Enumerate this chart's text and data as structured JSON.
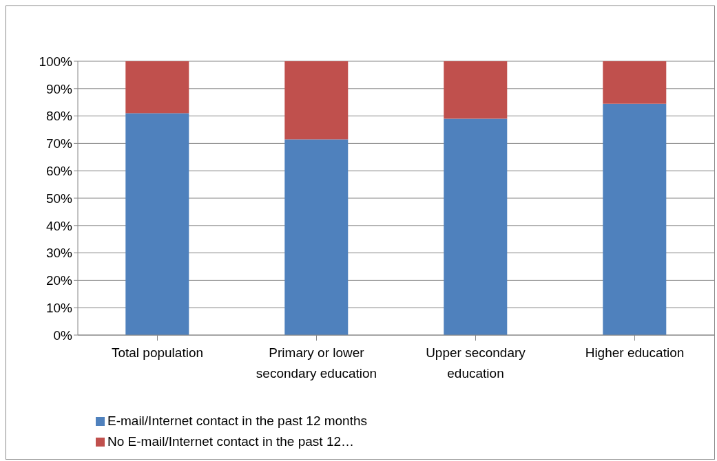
{
  "chart_data": {
    "type": "bar",
    "stacked": true,
    "categories": [
      "Total population",
      "Primary or lower secondary education",
      "Upper secondary education",
      "Higher education"
    ],
    "series": [
      {
        "name": "E-mail/Internet contact in the past 12 months",
        "color": "#4f81bd",
        "values": [
          81,
          71.5,
          79,
          84.5
        ]
      },
      {
        "name": "No E-mail/Internet contact in the past 12…",
        "color": "#c0504d",
        "values": [
          19,
          28.5,
          21,
          15.5
        ]
      }
    ],
    "ylim": [
      0,
      100
    ],
    "yticks": [
      {
        "value": 0,
        "label": "0%"
      },
      {
        "value": 10,
        "label": "10%"
      },
      {
        "value": 20,
        "label": "20%"
      },
      {
        "value": 30,
        "label": "30%"
      },
      {
        "value": 40,
        "label": "40%"
      },
      {
        "value": 50,
        "label": "50%"
      },
      {
        "value": 60,
        "label": "60%"
      },
      {
        "value": 70,
        "label": "70%"
      },
      {
        "value": 80,
        "label": "80%"
      },
      {
        "value": 90,
        "label": "90%"
      },
      {
        "value": 100,
        "label": "100%"
      }
    ],
    "grid": "y",
    "legend": "bottom left"
  }
}
